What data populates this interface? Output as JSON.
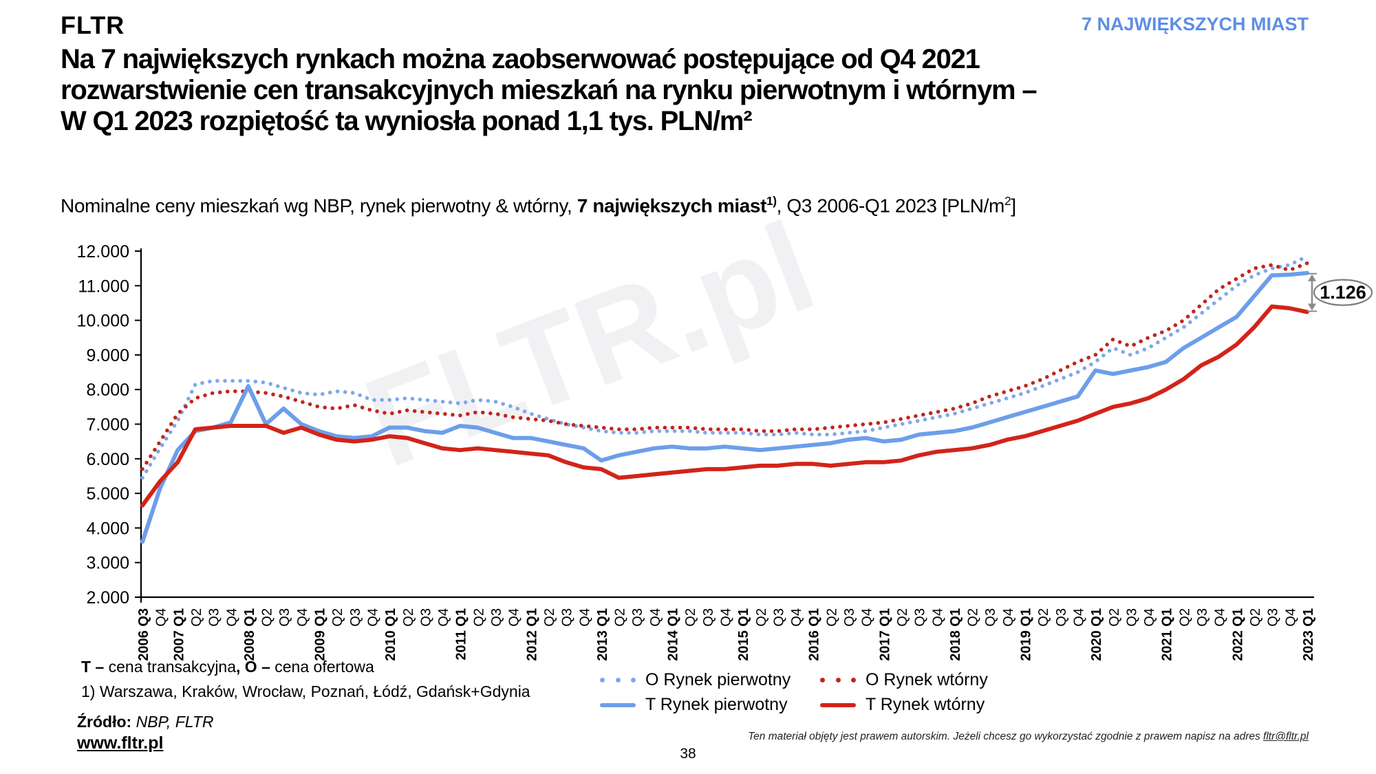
{
  "header": {
    "logo": "FLTR",
    "topic": "7 NAJWIĘKSZYCH MIAST"
  },
  "title_lines": [
    "Na 7 największych rynkach można zaobserwować postępujące od Q4 2021",
    "rozwarstwienie cen transakcyjnych mieszkań na rynku pierwotnym i wtórnym –",
    "W Q1 2023 rozpiętość ta wyniosła ponad 1,1 tys. PLN/m²"
  ],
  "subtitle": {
    "pre": "Nominalne ceny mieszkań wg NBP, rynek pierwotny & wtórny, ",
    "bold": "7 największych miast",
    "sup": "1)",
    "post": ", Q3 2006-Q1 2023 [PLN/m",
    "post_sup": "2",
    "post_end": "]"
  },
  "chart_data": {
    "type": "line",
    "title": "Nominalne ceny mieszkań wg NBP, rynek pierwotny & wtórny, 7 największych miast, Q3 2006-Q1 2023 [PLN/m2]",
    "ylim": [
      2000,
      12000
    ],
    "grid": false,
    "legend_position": "bottom",
    "watermark": "FLTR.pl",
    "y_ticks": [
      "12.000",
      "11.000",
      "10.000",
      "9.000",
      "8.000",
      "7.000",
      "6.000",
      "5.000",
      "4.000",
      "3.000",
      "2.000"
    ],
    "x_labels": [
      "2006 Q3",
      "Q4",
      "2007 Q1",
      "Q2",
      "Q3",
      "Q4",
      "2008 Q1",
      "Q2",
      "Q3",
      "Q4",
      "2009 Q1",
      "Q2",
      "Q3",
      "Q4",
      "2010 Q1",
      "Q2",
      "Q3",
      "Q4",
      "2011 Q1",
      "Q2",
      "Q3",
      "Q4",
      "2012 Q1",
      "Q2",
      "Q3",
      "Q4",
      "2013 Q1",
      "Q2",
      "Q3",
      "Q4",
      "2014 Q1",
      "Q2",
      "Q3",
      "Q4",
      "2015 Q1",
      "Q2",
      "Q3",
      "Q4",
      "2016 Q1",
      "Q2",
      "Q3",
      "Q4",
      "2017 Q1",
      "Q2",
      "Q3",
      "Q4",
      "2018 Q1",
      "Q2",
      "Q3",
      "Q4",
      "2019 Q1",
      "Q2",
      "Q3",
      "Q4",
      "2020 Q1",
      "Q2",
      "Q3",
      "Q4",
      "2021 Q1",
      "Q2",
      "Q3",
      "Q4",
      "2022 Q1",
      "Q2",
      "Q3",
      "Q4",
      "2023 Q1"
    ],
    "series": [
      {
        "name": "O Rynek pierwotny",
        "style": "dotted",
        "color": "#7FA7EC",
        "values": [
          5450,
          6300,
          7100,
          8150,
          8250,
          8250,
          8250,
          8200,
          8050,
          7900,
          7850,
          7950,
          7900,
          7700,
          7700,
          7750,
          7700,
          7650,
          7600,
          7700,
          7650,
          7500,
          7300,
          7150,
          7000,
          6900,
          6800,
          6750,
          6750,
          6800,
          6800,
          6800,
          6750,
          6750,
          6750,
          6700,
          6700,
          6750,
          6700,
          6700,
          6750,
          6800,
          6900,
          7000,
          7100,
          7200,
          7300,
          7450,
          7600,
          7750,
          7900,
          8100,
          8300,
          8500,
          8800,
          9200,
          9000,
          9200,
          9500,
          9800,
          10200,
          10600,
          11000,
          11300,
          11500,
          11600,
          11850
        ]
      },
      {
        "name": "O Rynek wtórny",
        "style": "dotted",
        "color": "#C2251F",
        "values": [
          5700,
          6500,
          7300,
          7750,
          7900,
          7950,
          7950,
          7900,
          7800,
          7650,
          7500,
          7450,
          7550,
          7400,
          7300,
          7400,
          7350,
          7300,
          7250,
          7350,
          7300,
          7200,
          7150,
          7100,
          7000,
          6950,
          6900,
          6850,
          6850,
          6900,
          6900,
          6900,
          6850,
          6850,
          6850,
          6800,
          6800,
          6850,
          6850,
          6900,
          6950,
          7000,
          7050,
          7150,
          7250,
          7350,
          7450,
          7600,
          7800,
          7950,
          8100,
          8300,
          8550,
          8800,
          9000,
          9450,
          9250,
          9500,
          9700,
          10000,
          10450,
          10900,
          11200,
          11500,
          11600,
          11450,
          11650
        ]
      },
      {
        "name": "T Rynek pierwotny",
        "style": "solid",
        "color": "#6D9EEA",
        "values": [
          3600,
          5150,
          6250,
          6800,
          6900,
          7050,
          8100,
          7000,
          7450,
          7000,
          6800,
          6650,
          6600,
          6650,
          6900,
          6900,
          6800,
          6750,
          6950,
          6900,
          6750,
          6600,
          6600,
          6500,
          6400,
          6300,
          5950,
          6100,
          6200,
          6300,
          6350,
          6300,
          6300,
          6350,
          6300,
          6250,
          6300,
          6350,
          6400,
          6450,
          6550,
          6600,
          6500,
          6550,
          6700,
          6750,
          6800,
          6900,
          7050,
          7200,
          7350,
          7500,
          7650,
          7800,
          8550,
          8450,
          8550,
          8650,
          8800,
          9200,
          9500,
          9800,
          10100,
          10700,
          11300,
          11320,
          11368
        ]
      },
      {
        "name": "T Rynek wtórny",
        "style": "solid",
        "color": "#D22419",
        "values": [
          4650,
          5350,
          5900,
          6850,
          6900,
          6950,
          6950,
          6950,
          6750,
          6900,
          6700,
          6550,
          6500,
          6550,
          6650,
          6600,
          6450,
          6300,
          6250,
          6300,
          6250,
          6200,
          6150,
          6100,
          5900,
          5750,
          5700,
          5450,
          5500,
          5550,
          5600,
          5650,
          5700,
          5700,
          5750,
          5800,
          5800,
          5850,
          5850,
          5800,
          5850,
          5900,
          5900,
          5950,
          6100,
          6200,
          6250,
          6300,
          6400,
          6550,
          6650,
          6800,
          6950,
          7100,
          7300,
          7500,
          7600,
          7750,
          8000,
          8300,
          8700,
          8950,
          9300,
          9800,
          10400,
          10350,
          10242
        ]
      }
    ],
    "annotation": {
      "label": "1.126",
      "from_series": "T Rynek pierwotny",
      "to_series": "T Rynek wtórny"
    }
  },
  "footnotes": {
    "def_t_label": "T –",
    "def_t": " cena transakcyjna",
    "def_o_label": ", O –",
    "def_o": " cena ofertowa",
    "cities": "1) Warszawa, Kraków, Wrocław, Poznań, Łódź, Gdańsk+Gdynia"
  },
  "source": {
    "label": "Źródło:",
    "value": " NBP, FLTR",
    "site": "www.fltr.pl"
  },
  "footer": {
    "page": "38",
    "copyright": "Ten materiał objęty jest prawem autorskim. Jeżeli chcesz go wykorzystać zgodnie z prawem napisz na adres ",
    "email": "fltr@fltr.pl"
  }
}
